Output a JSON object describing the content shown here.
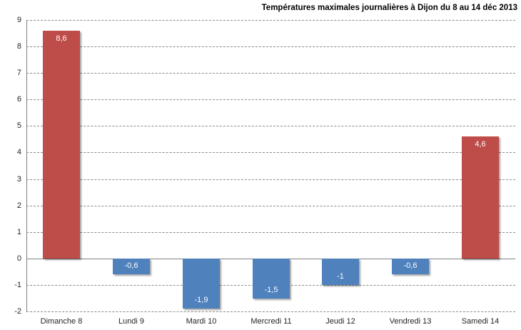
{
  "chart_data": {
    "type": "bar",
    "title": "Températures maximales journalières à Dijon du 8 au 14 déc 2013",
    "categories": [
      "Dimanche 8",
      "Lundi 9",
      "Mardi 10",
      "Mercredi 11",
      "Jeudi 12",
      "Vendredi 13",
      "Samedi 14"
    ],
    "values": [
      8.6,
      -0.6,
      -1.9,
      -1.5,
      -1,
      -0.6,
      4.6
    ],
    "value_labels": [
      "8,6",
      "-0,6",
      "-1,9",
      "-1,5",
      "-1",
      "-0,6",
      "4,6"
    ],
    "bar_colors": [
      "#BE4C48",
      "#4F81BD",
      "#4F81BD",
      "#4F81BD",
      "#4F81BD",
      "#4F81BD",
      "#BE4C48"
    ],
    "yticks": [
      9,
      8,
      7,
      6,
      5,
      4,
      3,
      2,
      1,
      0,
      -1,
      -2
    ],
    "ylim": [
      -2,
      9
    ],
    "xlabel": "",
    "ylabel": "",
    "grid": "horizontal-dashed",
    "legend": "none"
  },
  "colors": {
    "positive_bar": "#BE4C48",
    "negative_bar": "#4F81BD",
    "gridline": "#8C8C8C",
    "axis_line": "#808080",
    "data_label_text": "#FFFFFF",
    "tick_text": "#262626",
    "background": "#FFFFFF"
  }
}
